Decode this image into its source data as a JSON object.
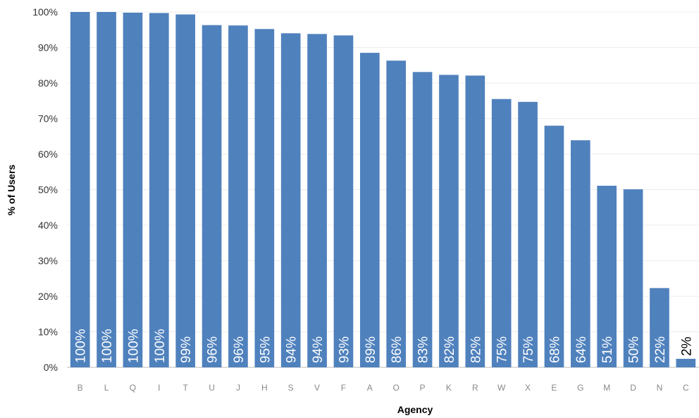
{
  "chart_data": {
    "type": "bar",
    "xlabel": "Agency",
    "ylabel": "% of Users",
    "ylim": [
      0,
      100
    ],
    "ytick_step": 10,
    "ytick_format": "{v}%",
    "grid": true,
    "categories": [
      "B",
      "L",
      "Q",
      "I",
      "T",
      "U",
      "J",
      "H",
      "S",
      "V",
      "F",
      "A",
      "O",
      "P",
      "K",
      "R",
      "W",
      "X",
      "E",
      "G",
      "M",
      "D",
      "N",
      "C"
    ],
    "values": [
      100,
      100,
      99.8,
      99.7,
      99.3,
      96.3,
      96.2,
      95.2,
      94,
      93.8,
      93.4,
      88.5,
      86.3,
      83.1,
      82.3,
      82.1,
      75.5,
      74.7,
      68,
      63.9,
      51.1,
      50.1,
      22.3,
      2.4
    ],
    "labels": [
      "100%",
      "100%",
      "100%",
      "100%",
      "99%",
      "96%",
      "96%",
      "95%",
      "94%",
      "94%",
      "93%",
      "89%",
      "86%",
      "83%",
      "82%",
      "82%",
      "75%",
      "75%",
      "68%",
      "64%",
      "51%",
      "50%",
      "22%",
      "2%"
    ],
    "colors": {
      "bar": "#4f81bd"
    }
  }
}
